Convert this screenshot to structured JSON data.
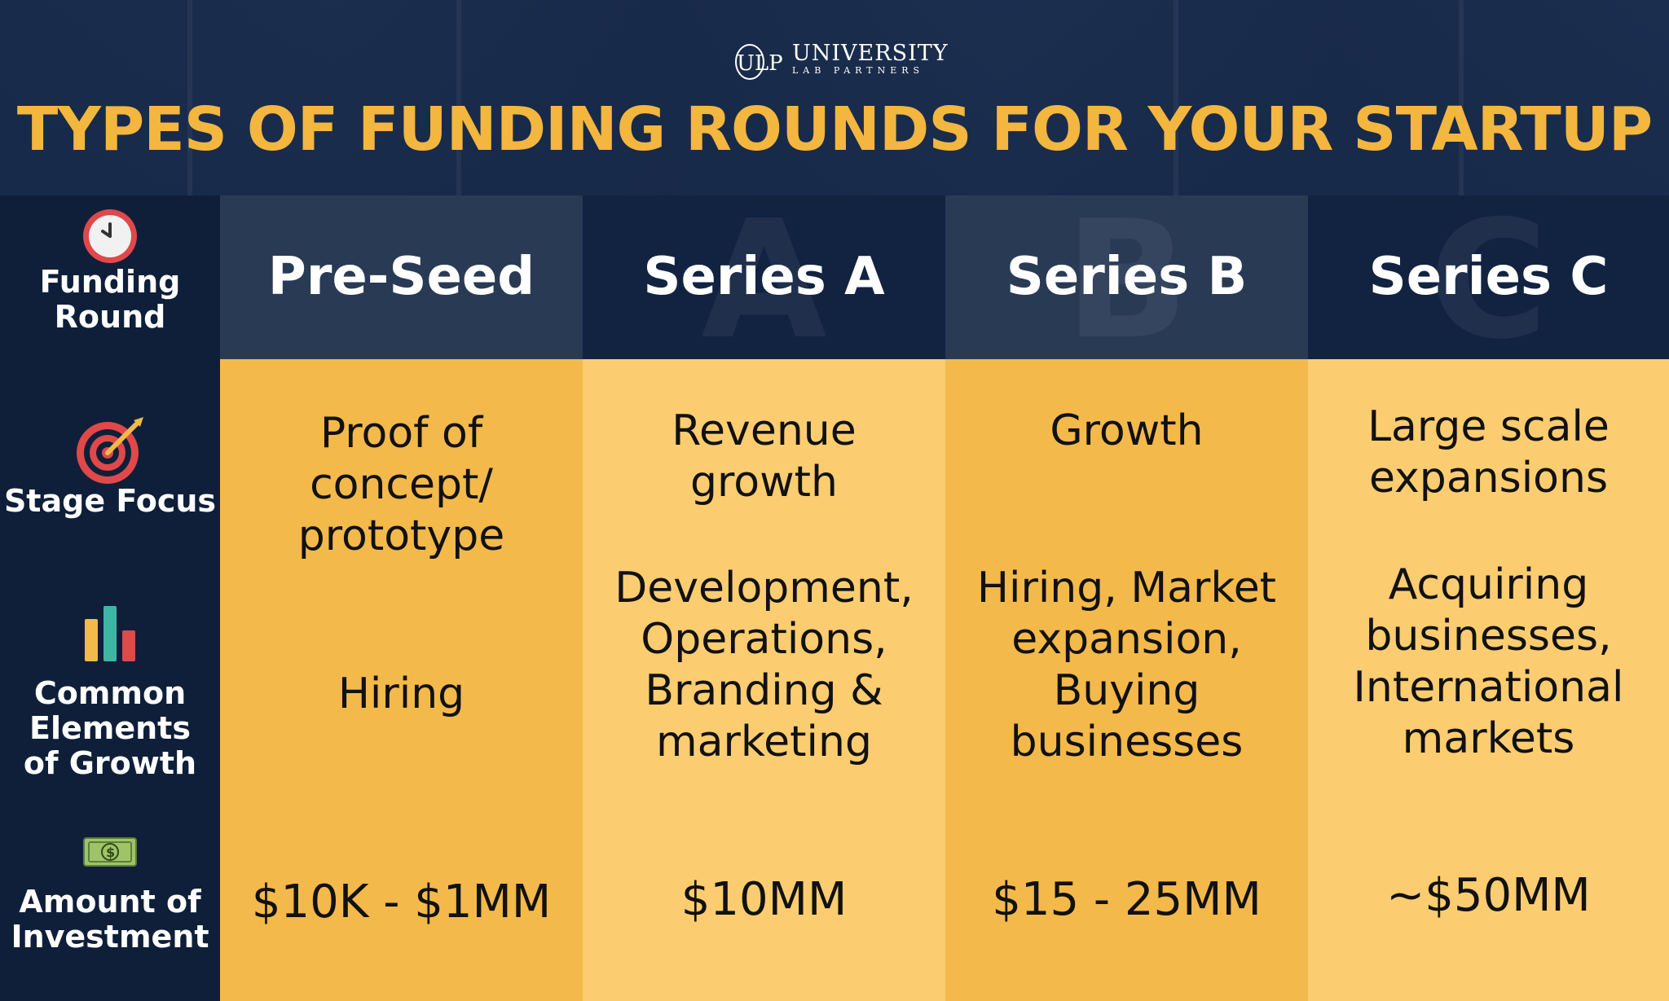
{
  "brand": {
    "logo_mark": "ULP",
    "name": "UNIVERSITY",
    "tagline": "LAB PARTNERS"
  },
  "title": "TYPES OF FUNDING ROUNDS FOR YOUR STARTUP",
  "row_labels": [
    {
      "label": "Funding\nRound",
      "icon": "clock-icon"
    },
    {
      "label": "Stage Focus",
      "icon": "target-icon"
    },
    {
      "label": "Common\nElements\nof Growth",
      "icon": "bar-chart-icon"
    },
    {
      "label": "Amount of\nInvestment",
      "icon": "money-icon"
    }
  ],
  "columns": [
    {
      "name": "Pre-Seed",
      "watermark": "",
      "focus": "Proof of\nconcept/\nprototype",
      "growth": "Hiring",
      "amount": "$10K - $1MM"
    },
    {
      "name": "Series A",
      "watermark": "A",
      "focus": "Revenue\ngrowth",
      "growth": "Development,\nOperations,\nBranding &\nmarketing",
      "amount": "$10MM"
    },
    {
      "name": "Series B",
      "watermark": "B",
      "focus": "Growth",
      "growth": "Hiring, Market\nexpansion,\nBuying\nbusinesses",
      "amount": "$15 - 25MM"
    },
    {
      "name": "Series C",
      "watermark": "C",
      "focus": "Large scale\nexpansions",
      "growth": "Acquiring\nbusinesses,\nInternational\nmarkets",
      "amount": "~$50MM"
    }
  ],
  "colors": {
    "title": "#f3b63e",
    "navy": "#0f1f3a",
    "amber": "#f3b94a",
    "light_amber": "#fbcd70"
  }
}
